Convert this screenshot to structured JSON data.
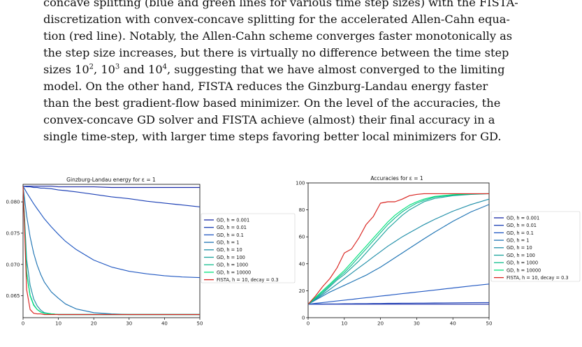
{
  "text": {
    "line0": "concave splitting (blue and green lines for various time step sizes) with the FISTA-",
    "line1": "discretization with convex-concave splitting for the accelerated Allen-Cahn equa-",
    "line2": "tion (red line). Notably, the Allen-Cahn scheme converges faster monotonically as",
    "line3": "the step size increases, but there is virtually no difference between the time step",
    "line4a": "sizes 10",
    "line4b": ", 10",
    "line4c": " and 10",
    "line4d": ", suggesting that we have almost converged to the limiting",
    "exp1": "2",
    "exp2": "3",
    "exp3": "4",
    "line5": "model. On the other hand, FISTA reduces the Ginzburg-Landau energy faster",
    "line6": "than the best gradient-flow based minimizer. On the level of the accuracies, the",
    "line7": "convex-concave GD solver and FISTA achieve (almost) their final accuracy in a",
    "line8": "single time-step, with larger time steps favoring better local minimizers for GD."
  },
  "legend": [
    {
      "label": "GD, h = 0.001",
      "color": "#1a2aa8"
    },
    {
      "label": "GD, h = 0.01",
      "color": "#1b3fb5"
    },
    {
      "label": "GD, h = 0.1",
      "color": "#2158c2"
    },
    {
      "label": "GD, h = 1",
      "color": "#1f74b4"
    },
    {
      "label": "GD, h = 10",
      "color": "#1f8ea8"
    },
    {
      "label": "GD, h = 100",
      "color": "#1ba39c"
    },
    {
      "label": "GD, h = 1000",
      "color": "#12bf8e"
    },
    {
      "label": "GD, h = 10000",
      "color": "#00e27a"
    },
    {
      "label": "FISTA, h = 10, decay = 0.3",
      "color": "#d9231f"
    }
  ],
  "chart_data": [
    {
      "type": "line",
      "title": "Ginzburg-Landau energy for ε = 1",
      "xlim": [
        0,
        50
      ],
      "ylim": [
        0.0615,
        0.0828
      ],
      "xticks": [
        0,
        10,
        20,
        30,
        40,
        50
      ],
      "yticks": [
        0.065,
        0.07,
        0.075,
        0.08
      ],
      "ytick_labels": [
        "0.065",
        "0.070",
        "0.075",
        "0.080"
      ],
      "x": [
        0,
        1,
        2,
        3,
        4,
        5,
        6,
        8,
        10,
        12,
        15,
        20,
        25,
        30,
        35,
        40,
        45,
        50
      ],
      "series": [
        {
          "name": "GD, h = 0.001",
          "values": [
            0.0825,
            0.0825,
            0.0825,
            0.0825,
            0.0825,
            0.0825,
            0.0825,
            0.0825,
            0.0824,
            0.0824,
            0.0824,
            0.0824,
            0.0823,
            0.0823,
            0.0823,
            0.0823,
            0.0823,
            0.0823
          ]
        },
        {
          "name": "GD, h = 0.01",
          "values": [
            0.0825,
            0.0824,
            0.0824,
            0.0823,
            0.0823,
            0.0822,
            0.0822,
            0.0821,
            0.0819,
            0.0818,
            0.0816,
            0.0812,
            0.0808,
            0.0805,
            0.0801,
            0.0798,
            0.0795,
            0.0792
          ]
        },
        {
          "name": "GD, h = 0.1",
          "values": [
            0.0825,
            0.0815,
            0.0806,
            0.0797,
            0.0789,
            0.0781,
            0.0773,
            0.076,
            0.0748,
            0.0737,
            0.0724,
            0.0707,
            0.0696,
            0.0689,
            0.0685,
            0.0682,
            0.068,
            0.0679
          ]
        },
        {
          "name": "GD, h = 1",
          "values": [
            0.0825,
            0.0778,
            0.0744,
            0.0718,
            0.0699,
            0.0684,
            0.0672,
            0.0656,
            0.0646,
            0.0637,
            0.0629,
            0.0623,
            0.0621,
            0.062,
            0.062,
            0.062,
            0.062,
            0.062
          ]
        },
        {
          "name": "GD, h = 10",
          "values": [
            0.0825,
            0.0708,
            0.0667,
            0.0645,
            0.0634,
            0.0627,
            0.0623,
            0.0621,
            0.062,
            0.062,
            0.062,
            0.062,
            0.062,
            0.062,
            0.062,
            0.062,
            0.062,
            0.062
          ]
        },
        {
          "name": "GD, h = 100",
          "values": [
            0.0825,
            0.0688,
            0.0651,
            0.0636,
            0.0628,
            0.0624,
            0.0622,
            0.0621,
            0.062,
            0.062,
            0.062,
            0.062,
            0.062,
            0.062,
            0.062,
            0.062,
            0.062,
            0.062
          ]
        },
        {
          "name": "GD, h = 1000",
          "values": [
            0.0825,
            0.0686,
            0.065,
            0.0635,
            0.0628,
            0.0624,
            0.0622,
            0.0621,
            0.062,
            0.062,
            0.062,
            0.062,
            0.062,
            0.062,
            0.062,
            0.062,
            0.062,
            0.062
          ]
        },
        {
          "name": "GD, h = 10000",
          "values": [
            0.0825,
            0.0686,
            0.065,
            0.0635,
            0.0628,
            0.0624,
            0.0622,
            0.0621,
            0.062,
            0.062,
            0.062,
            0.062,
            0.062,
            0.062,
            0.062,
            0.062,
            0.062,
            0.062
          ]
        },
        {
          "name": "FISTA, h = 10, decay = 0.3",
          "values": [
            0.0825,
            0.066,
            0.0628,
            0.0622,
            0.0621,
            0.0621,
            0.062,
            0.062,
            0.062,
            0.062,
            0.062,
            0.062,
            0.062,
            0.062,
            0.062,
            0.062,
            0.062,
            0.062
          ]
        }
      ]
    },
    {
      "type": "line",
      "title": "Accuracies for ε = 1",
      "xlim": [
        0,
        50
      ],
      "ylim": [
        0,
        100
      ],
      "xticks": [
        0,
        10,
        20,
        30,
        40,
        50
      ],
      "yticks": [
        0,
        20,
        40,
        60,
        80,
        100
      ],
      "ytick_labels": [
        "0",
        "20",
        "40",
        "60",
        "80",
        "100"
      ],
      "x": [
        0,
        2,
        4,
        6,
        8,
        10,
        12,
        14,
        16,
        18,
        20,
        22,
        24,
        26,
        28,
        30,
        32,
        35,
        40,
        45,
        50
      ],
      "series": [
        {
          "name": "GD, h = 0.001",
          "values": [
            10,
            10,
            10,
            10,
            10,
            10,
            10,
            10,
            10,
            10,
            10,
            10,
            10,
            10,
            10,
            10,
            10,
            10,
            10,
            10,
            10
          ]
        },
        {
          "name": "GD, h = 0.01",
          "values": [
            10,
            10.1,
            10.1,
            10.2,
            10.2,
            10.3,
            10.3,
            10.4,
            10.4,
            10.5,
            10.5,
            10.6,
            10.6,
            10.7,
            10.7,
            10.8,
            10.8,
            10.9,
            11,
            11.1,
            11.2
          ]
        },
        {
          "name": "GD, h = 0.1",
          "values": [
            10,
            10.6,
            11.2,
            11.8,
            12.4,
            13,
            13.6,
            14.2,
            14.8,
            15.4,
            16,
            16.6,
            17.2,
            17.8,
            18.4,
            19,
            19.6,
            20.5,
            22,
            23.5,
            25
          ]
        },
        {
          "name": "GD, h = 1",
          "values": [
            10,
            13,
            16,
            19,
            21.5,
            24,
            26.5,
            29,
            31.5,
            34.5,
            37.5,
            41,
            44.5,
            48,
            51.5,
            55,
            58.5,
            63.5,
            71.5,
            78.5,
            84
          ]
        },
        {
          "name": "GD, h = 10",
          "values": [
            10,
            13.5,
            17,
            21,
            25,
            29,
            33,
            37,
            41,
            45,
            49,
            53,
            56.5,
            60,
            63,
            66,
            69,
            73,
            79,
            84,
            88
          ]
        },
        {
          "name": "GD, h = 100",
          "values": [
            10,
            14,
            18,
            23,
            28,
            32,
            37,
            42,
            48,
            54,
            60,
            66,
            71,
            76,
            80,
            83,
            86,
            88.5,
            90.5,
            91.5,
            92
          ]
        },
        {
          "name": "GD, h = 1000",
          "values": [
            10,
            14.5,
            19,
            24,
            29,
            33.5,
            39,
            45,
            51,
            57,
            63,
            69,
            74,
            78.5,
            82,
            85,
            87,
            89.5,
            91,
            91.8,
            92
          ]
        },
        {
          "name": "GD, h = 10000",
          "values": [
            10,
            15,
            20,
            25,
            30,
            35,
            41,
            47,
            53,
            59,
            65,
            71,
            76,
            80,
            83.5,
            86,
            88,
            90,
            91.3,
            91.9,
            92
          ]
        },
        {
          "name": "FISTA, h = 10, decay = 0.3",
          "values": [
            10,
            16,
            23,
            29,
            37,
            48,
            51,
            59,
            69,
            75,
            85,
            86,
            86,
            88,
            90.5,
            91.5,
            92,
            92,
            92,
            92,
            92
          ]
        }
      ]
    }
  ]
}
